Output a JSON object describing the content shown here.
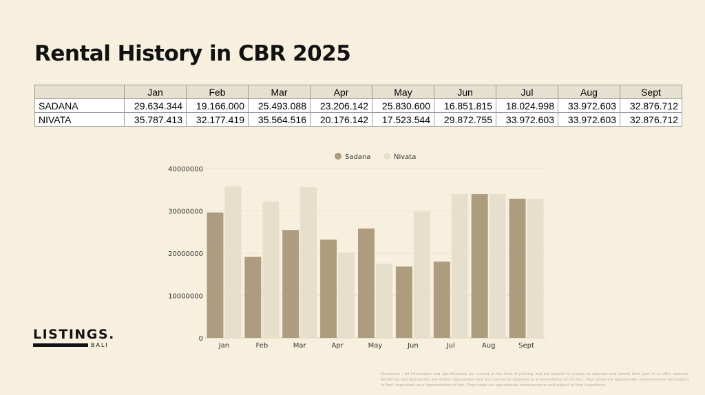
{
  "title": "Rental History in CBR 2025",
  "table": {
    "headers": [
      "Jan",
      "Feb",
      "Mar",
      "Apr",
      "May",
      "Jun",
      "Jul",
      "Aug",
      "Sept"
    ],
    "rows": [
      {
        "label": "SADANA",
        "values": [
          "29.634.344",
          "19.166.000",
          "25.493.088",
          "23.206.142",
          "25.830.600",
          "16.851.815",
          "18.024.998",
          "33.972.603",
          "32.876.712"
        ]
      },
      {
        "label": "NIVATA",
        "values": [
          "35.787.413",
          "32.177.419",
          "35.564.516",
          "20.176.142",
          "17.523.544",
          "29.872.755",
          "33.972.603",
          "33.972.603",
          "32.876.712"
        ]
      }
    ]
  },
  "chart_data": {
    "type": "bar",
    "categories": [
      "Jan",
      "Feb",
      "Mar",
      "Apr",
      "May",
      "Jun",
      "Jul",
      "Aug",
      "Sept"
    ],
    "series": [
      {
        "name": "Sadana",
        "color": "#ae9c7f",
        "values": [
          29634344,
          19166000,
          25493088,
          23206142,
          25830600,
          16851815,
          18024998,
          33972603,
          32876712
        ]
      },
      {
        "name": "Nivata",
        "color": "#e6dfcc",
        "values": [
          35787413,
          32177419,
          35564516,
          20176142,
          17523544,
          29872755,
          33972603,
          33972603,
          32876712
        ]
      }
    ],
    "ylim": [
      0,
      40000000
    ],
    "yticks": [
      "0",
      "10000000",
      "20000000",
      "30000000",
      "40000000"
    ],
    "grid": true,
    "legend": "top"
  },
  "logo": {
    "name": "LISTINGS.",
    "sub": "BALI"
  },
  "disclaimer": "Disclaimer : All information and specifications are current at the time of printing and are subject to change as required and cannot form part of an offer contract. Rendering and illustrations are artists' impressions only and cannot be regarded as a presentation of the fact. Floor areas are approximate measurements and subject to final inspections as a representation of fact. Floor areas are approximate measurements and subject to final inspections."
}
